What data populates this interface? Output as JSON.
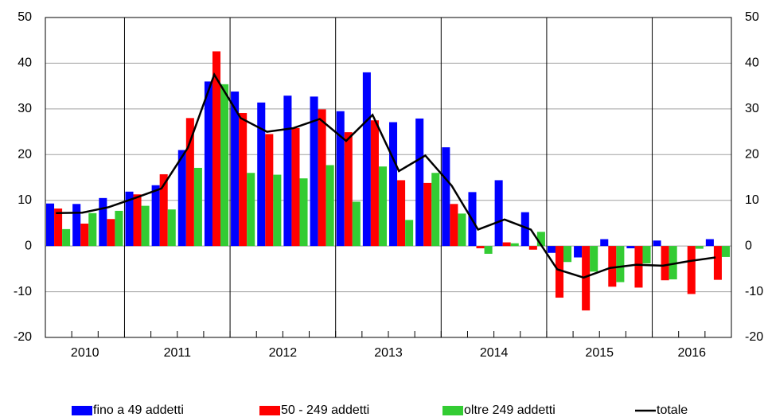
{
  "chart_data": {
    "type": "bar",
    "categories": [
      "2010",
      "2010",
      "2010",
      "2011",
      "2011",
      "2011",
      "2011",
      "2012",
      "2012",
      "2012",
      "2012",
      "2013",
      "2013",
      "2013",
      "2013",
      "2014",
      "2014",
      "2014",
      "2014",
      "2015",
      "2015",
      "2015",
      "2015",
      "2016",
      "2016",
      "2016"
    ],
    "series": [
      {
        "name": "fino a 49 addetti",
        "color": "#0000ff",
        "values": [
          9.3,
          9.2,
          10.5,
          11.9,
          13.3,
          21,
          36,
          33.8,
          31.4,
          32.9,
          32.7,
          29.5,
          38,
          27.1,
          27.9,
          21.6,
          11.8,
          14.4,
          7.4,
          -1.5,
          -2.5,
          1.5,
          -0.5,
          1.2,
          0,
          1.5
        ]
      },
      {
        "name": "50 - 249 addetti",
        "color": "#ff0000",
        "values": [
          8.2,
          4.9,
          5.9,
          11.3,
          15.7,
          28,
          42.6,
          29.1,
          24.5,
          25.8,
          29.9,
          24.9,
          27.5,
          14.4,
          13.8,
          9.2,
          -0.5,
          0.8,
          -0.8,
          -11.3,
          -14.1,
          -8.9,
          -9.1,
          -7.5,
          -10.5,
          -7.4
        ]
      },
      {
        "name": "oltre 249 addetti",
        "color": "#33cc33",
        "values": [
          3.7,
          7.2,
          7.7,
          8.8,
          8,
          17.1,
          35.4,
          16,
          15.6,
          14.8,
          17.7,
          9.7,
          17.4,
          5.7,
          16,
          7.1,
          -1.7,
          0.6,
          3.1,
          -3.5,
          -5.6,
          -7.9,
          -3.8,
          -7.3,
          -0.6,
          -2.4
        ]
      },
      {
        "name": "totale",
        "type": "line",
        "color": "#000000",
        "values": [
          7.2,
          7.3,
          8.5,
          10.5,
          12.6,
          21.5,
          37.5,
          28,
          25,
          25.8,
          27.8,
          23,
          28.7,
          16.4,
          19.8,
          13.2,
          3.6,
          5.8,
          3.6,
          -5.1,
          -6.9,
          -4.8,
          -4.1,
          -4.3,
          -3.3,
          -2.5
        ]
      }
    ],
    "ylim": [
      -20,
      50
    ],
    "yticks": [
      -20,
      -10,
      0,
      10,
      20,
      30,
      40,
      50
    ],
    "grid": true
  }
}
